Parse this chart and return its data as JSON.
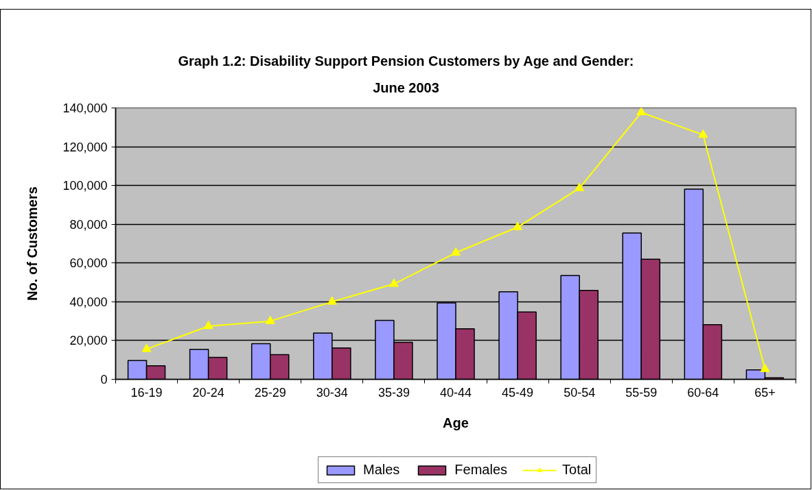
{
  "chart_data": {
    "type": "bar",
    "title": "Graph 1.2: Disability Support Pension Customers by Age and Gender:\nJune 2003",
    "xlabel": "Age",
    "ylabel": "No. of Customers",
    "categories": [
      "16-19",
      "20-24",
      "25-29",
      "30-34",
      "35-39",
      "40-44",
      "45-49",
      "50-54",
      "55-59",
      "60-64",
      "65+"
    ],
    "series": [
      {
        "name": "Males",
        "color": "#9999ff",
        "values": [
          9700,
          15500,
          18400,
          23900,
          30400,
          39400,
          45200,
          53600,
          75500,
          98100,
          4900
        ]
      },
      {
        "name": "Females",
        "color": "#993366",
        "values": [
          7000,
          11300,
          12700,
          16200,
          19100,
          26100,
          34700,
          45900,
          62000,
          28200,
          800
        ]
      },
      {
        "name": "Total",
        "type": "line",
        "color": "#ffff00",
        "marker": "triangle",
        "values": [
          15600,
          27400,
          30000,
          40000,
          49200,
          65300,
          78500,
          98600,
          137700,
          126100,
          5300
        ]
      }
    ],
    "ylim": [
      0,
      140000
    ],
    "yticks": [
      0,
      {
        "value": 20000,
        "label": "20,000"
      },
      {
        "value": 40000,
        "label": "40,000"
      },
      {
        "value": 60000,
        "label": "60,000"
      },
      {
        "value": 80000,
        "label": "80,000"
      },
      {
        "value": 100000,
        "label": "100,000"
      },
      {
        "value": 120000,
        "label": "120,000"
      },
      {
        "value": 140000,
        "label": "140,000"
      }
    ],
    "grid": "y",
    "legend": "bottom"
  }
}
